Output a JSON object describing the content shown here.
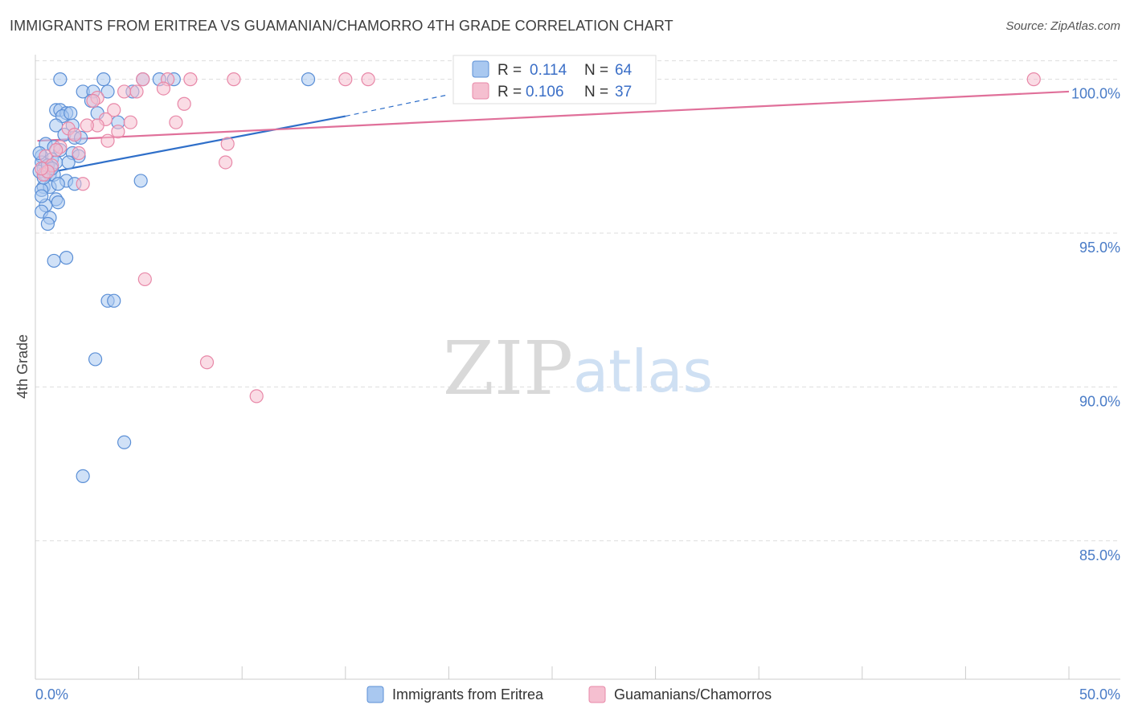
{
  "title": "IMMIGRANTS FROM ERITREA VS GUAMANIAN/CHAMORRO 4TH GRADE CORRELATION CHART",
  "source": "Source: ZipAtlas.com",
  "watermark": {
    "zip": "ZIP",
    "atlas": "atlas"
  },
  "colors": {
    "blue_fill": "#a9c8f0",
    "blue_stroke": "#5b8fd6",
    "blue_line": "#2f6fc9",
    "pink_fill": "#f5bfd0",
    "pink_stroke": "#e888a8",
    "pink_line": "#e0709a",
    "grid": "#dddddd",
    "tick_text": "#4a7cc7"
  },
  "legend_box": {
    "series1": {
      "r_label": "R = ",
      "r_value": "0.114",
      "n_label": "N = ",
      "n_value": "64"
    },
    "series2": {
      "r_label": "R = ",
      "r_value": "0.106",
      "n_label": "N = ",
      "n_value": "37"
    }
  },
  "chart_data": {
    "type": "scatter",
    "title": "IMMIGRANTS FROM ERITREA VS GUAMANIAN/CHAMORRO 4TH GRADE CORRELATION CHART",
    "xlabel": "",
    "ylabel": "4th Grade",
    "xlim": [
      0,
      50
    ],
    "ylim": [
      80.5,
      100.8
    ],
    "x_tick_labels": [
      "0.0%",
      "50.0%"
    ],
    "y_ticks": [
      {
        "value": 100,
        "label": "100.0%"
      },
      {
        "value": 95,
        "label": "95.0%"
      },
      {
        "value": 90,
        "label": "90.0%"
      },
      {
        "value": 85,
        "label": "85.0%"
      }
    ],
    "grid": true,
    "legend_position": "bottom",
    "series": [
      {
        "name": "Immigrants from Eritrea",
        "color": "blue",
        "trend": {
          "x0": 0.1,
          "y0": 96.9,
          "x1": 15.0,
          "y1": 98.8,
          "dash_to_x": 20.0,
          "dash_to_y": 99.5
        },
        "points": [
          [
            1.2,
            100.0
          ],
          [
            3.3,
            100.0
          ],
          [
            5.2,
            100.0
          ],
          [
            6.0,
            100.0
          ],
          [
            6.7,
            100.0
          ],
          [
            13.2,
            100.0
          ],
          [
            2.3,
            99.6
          ],
          [
            2.8,
            99.6
          ],
          [
            3.5,
            99.6
          ],
          [
            4.7,
            99.6
          ],
          [
            1.0,
            99.0
          ],
          [
            1.2,
            99.0
          ],
          [
            1.5,
            98.9
          ],
          [
            3.0,
            98.9
          ],
          [
            1.3,
            98.8
          ],
          [
            1.0,
            98.5
          ],
          [
            1.8,
            98.5
          ],
          [
            1.4,
            98.2
          ],
          [
            1.9,
            98.1
          ],
          [
            2.2,
            98.1
          ],
          [
            0.5,
            97.9
          ],
          [
            0.9,
            97.8
          ],
          [
            1.2,
            97.7
          ],
          [
            1.8,
            97.6
          ],
          [
            2.1,
            97.5
          ],
          [
            0.3,
            97.5
          ],
          [
            0.8,
            97.4
          ],
          [
            1.0,
            97.3
          ],
          [
            0.3,
            97.3
          ],
          [
            0.6,
            97.2
          ],
          [
            0.4,
            97.1
          ],
          [
            0.2,
            97.0
          ],
          [
            0.7,
            96.9
          ],
          [
            0.5,
            96.9
          ],
          [
            0.9,
            96.9
          ],
          [
            1.5,
            96.7
          ],
          [
            1.9,
            96.6
          ],
          [
            5.1,
            96.7
          ],
          [
            0.4,
            96.5
          ],
          [
            0.7,
            96.5
          ],
          [
            0.3,
            96.4
          ],
          [
            1.0,
            96.1
          ],
          [
            1.1,
            96.0
          ],
          [
            0.5,
            95.9
          ],
          [
            0.3,
            95.7
          ],
          [
            0.7,
            95.5
          ],
          [
            0.6,
            95.3
          ],
          [
            0.9,
            94.1
          ],
          [
            1.5,
            94.2
          ],
          [
            3.5,
            92.8
          ],
          [
            3.8,
            92.8
          ],
          [
            2.9,
            90.9
          ],
          [
            4.3,
            88.2
          ],
          [
            2.3,
            87.1
          ],
          [
            0.2,
            97.6
          ],
          [
            0.6,
            97.2
          ],
          [
            1.6,
            97.3
          ],
          [
            0.4,
            96.8
          ],
          [
            0.8,
            97.1
          ],
          [
            1.1,
            96.6
          ],
          [
            0.3,
            96.2
          ],
          [
            2.7,
            99.3
          ],
          [
            4.0,
            98.6
          ],
          [
            1.7,
            98.9
          ]
        ]
      },
      {
        "name": "Guamanians/Chamorros",
        "color": "pink",
        "trend": {
          "x0": 0.1,
          "y0": 98.0,
          "x1": 50.0,
          "y1": 99.6
        },
        "points": [
          [
            5.2,
            100.0
          ],
          [
            6.4,
            100.0
          ],
          [
            7.5,
            100.0
          ],
          [
            9.6,
            100.0
          ],
          [
            15.0,
            100.0
          ],
          [
            16.1,
            100.0
          ],
          [
            48.3,
            100.0
          ],
          [
            6.2,
            99.7
          ],
          [
            4.3,
            99.6
          ],
          [
            4.9,
            99.6
          ],
          [
            3.0,
            99.4
          ],
          [
            2.8,
            99.3
          ],
          [
            7.2,
            99.2
          ],
          [
            3.8,
            99.0
          ],
          [
            3.4,
            98.7
          ],
          [
            4.6,
            98.6
          ],
          [
            6.8,
            98.6
          ],
          [
            3.0,
            98.5
          ],
          [
            1.6,
            98.4
          ],
          [
            4.0,
            98.3
          ],
          [
            3.5,
            98.0
          ],
          [
            9.3,
            97.9
          ],
          [
            1.2,
            97.8
          ],
          [
            2.1,
            97.6
          ],
          [
            9.2,
            97.3
          ],
          [
            0.5,
            97.5
          ],
          [
            0.8,
            97.2
          ],
          [
            0.4,
            96.9
          ],
          [
            2.3,
            96.6
          ],
          [
            0.6,
            97.0
          ],
          [
            5.3,
            93.5
          ],
          [
            8.3,
            90.8
          ],
          [
            10.7,
            89.7
          ],
          [
            2.5,
            98.5
          ],
          [
            1.0,
            97.7
          ],
          [
            0.3,
            97.1
          ],
          [
            1.9,
            98.2
          ]
        ]
      }
    ]
  }
}
